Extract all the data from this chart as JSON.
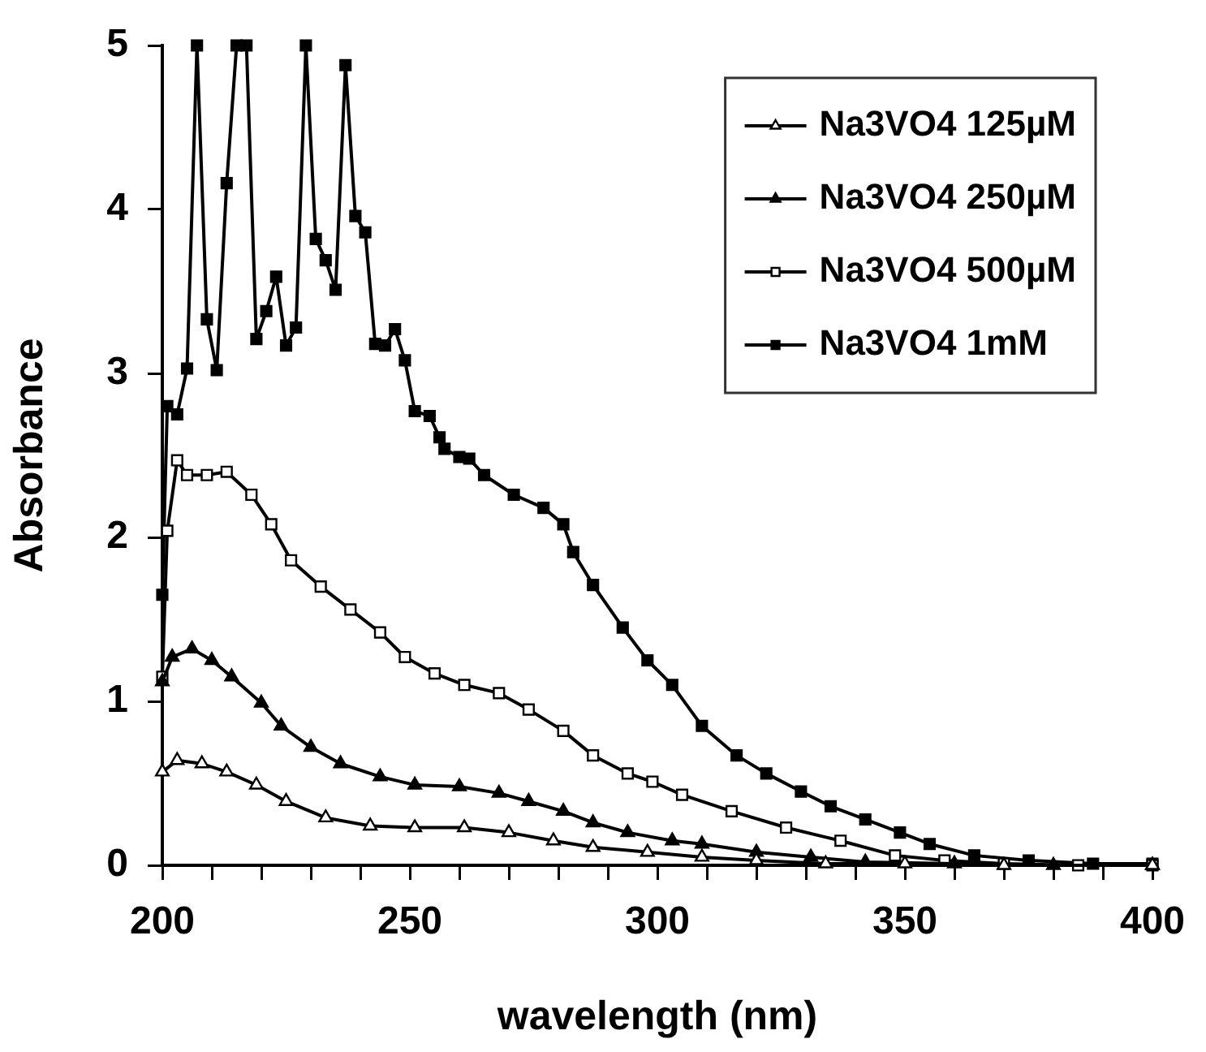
{
  "chart_data": {
    "type": "line",
    "xlabel": "wavelength (nm)",
    "ylabel": "Absorbance",
    "xlim": [
      200,
      400
    ],
    "ylim": [
      0,
      5
    ],
    "xticks": [
      200,
      {
        "value": 210,
        "label": null
      },
      {
        "value": 220,
        "label": null
      },
      {
        "value": 230,
        "label": null
      },
      {
        "value": 240,
        "label": null
      },
      250,
      {
        "value": 260,
        "label": null
      },
      {
        "value": 270,
        "label": null
      },
      {
        "value": 280,
        "label": null
      },
      {
        "value": 290,
        "label": null
      },
      300,
      {
        "value": 310,
        "label": null
      },
      {
        "value": 320,
        "label": null
      },
      {
        "value": 330,
        "label": null
      },
      {
        "value": 340,
        "label": null
      },
      350,
      {
        "value": 360,
        "label": null
      },
      {
        "value": 370,
        "label": null
      },
      {
        "value": 380,
        "label": null
      },
      {
        "value": 390,
        "label": null
      },
      400
    ],
    "yticks": [
      0,
      1,
      2,
      3,
      4,
      5
    ],
    "grid": false,
    "legend": "top right",
    "line_style": "solid",
    "series": [
      {
        "name": "Na3VO4 125µM",
        "color": "#ffffff",
        "marker": "triangle",
        "x": [
          200,
          203,
          208,
          213,
          219,
          225,
          233,
          242,
          251,
          261,
          270,
          279,
          287,
          298,
          309,
          320,
          334,
          350,
          370,
          400
        ],
        "values": [
          0.57,
          0.64,
          0.62,
          0.57,
          0.49,
          0.39,
          0.29,
          0.24,
          0.23,
          0.23,
          0.2,
          0.15,
          0.11,
          0.08,
          0.05,
          0.03,
          0.01,
          0.01,
          0,
          0
        ]
      },
      {
        "name": "Na3VO4 250µM",
        "color": "#000000",
        "marker": "triangle",
        "x": [
          200,
          202,
          206,
          210,
          214,
          220,
          224,
          230,
          236,
          244,
          251,
          260,
          268,
          274,
          281,
          287,
          294,
          303,
          309,
          320,
          331,
          342,
          360,
          380,
          400
        ],
        "values": [
          1.12,
          1.27,
          1.32,
          1.25,
          1.15,
          0.99,
          0.85,
          0.72,
          0.62,
          0.54,
          0.49,
          0.48,
          0.44,
          0.39,
          0.33,
          0.26,
          0.2,
          0.15,
          0.13,
          0.08,
          0.05,
          0.02,
          0.01,
          0,
          0
        ]
      },
      {
        "name": "Na3VO4 500µM",
        "color": "#ffffff",
        "marker": "square",
        "x": [
          200,
          201,
          203,
          205,
          209,
          213,
          218,
          222,
          226,
          232,
          238,
          244,
          249,
          255,
          261,
          268,
          274,
          281,
          287,
          294,
          299,
          305,
          315,
          326,
          337,
          348,
          358,
          370,
          385,
          400
        ],
        "values": [
          1.15,
          2.04,
          2.47,
          2.38,
          2.38,
          2.4,
          2.26,
          2.08,
          1.86,
          1.7,
          1.56,
          1.42,
          1.27,
          1.17,
          1.1,
          1.05,
          0.95,
          0.82,
          0.67,
          0.56,
          0.51,
          0.43,
          0.33,
          0.23,
          0.15,
          0.06,
          0.03,
          0.01,
          0,
          0
        ]
      },
      {
        "name": "Na3VO4 1mM",
        "color": "#000000",
        "marker": "square",
        "x": [
          200,
          201,
          203,
          205,
          207,
          209,
          211,
          213,
          215,
          217,
          219,
          221,
          223,
          225,
          227,
          229,
          231,
          233,
          235,
          237,
          239,
          241,
          243,
          245,
          247,
          249,
          251,
          254,
          256,
          257,
          260,
          262,
          265,
          271,
          277,
          281,
          283,
          287,
          293,
          298,
          303,
          309,
          316,
          322,
          329,
          335,
          342,
          349,
          355,
          364,
          375,
          388,
          400
        ],
        "values": [
          1.65,
          2.8,
          2.75,
          3.03,
          5,
          3.33,
          3.02,
          4.16,
          5,
          5,
          3.21,
          3.38,
          3.59,
          3.17,
          3.28,
          5,
          3.82,
          3.69,
          3.51,
          4.88,
          3.96,
          3.86,
          3.18,
          3.17,
          3.27,
          3.08,
          2.77,
          2.74,
          2.61,
          2.54,
          2.49,
          2.48,
          2.38,
          2.26,
          2.18,
          2.08,
          1.91,
          1.71,
          1.45,
          1.25,
          1.1,
          0.85,
          0.67,
          0.56,
          0.45,
          0.36,
          0.28,
          0.2,
          0.13,
          0.06,
          0.03,
          0.01,
          0.01
        ]
      }
    ]
  }
}
